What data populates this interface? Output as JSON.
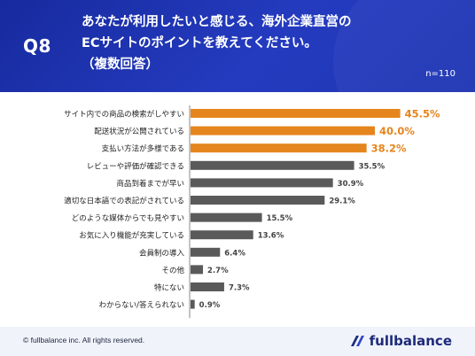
{
  "header": {
    "question_no": "Q8",
    "question_lines": [
      "あなたが利用したいと感じる、海外企業直営の",
      "ECサイトのポイントを教えてください。",
      "（複数回答）"
    ],
    "sample_size": "n=110"
  },
  "chart_data": {
    "type": "bar",
    "orientation": "horizontal",
    "categories": [
      "サイト内での商品の検索がしやすい",
      "配送状況が公開されている",
      "支払い方法が多様である",
      "レビューや評価が確認できる",
      "商品到着までが早い",
      "適切な日本語での表記がされている",
      "どのような媒体からでも見やすい",
      "お気に入り機能が充実している",
      "会員制の導入",
      "その他",
      "特にない",
      "わからない/答えられない"
    ],
    "values": [
      45.5,
      40.0,
      38.2,
      35.5,
      30.9,
      29.1,
      15.5,
      13.6,
      6.4,
      2.7,
      7.3,
      0.9
    ],
    "value_labels": [
      "45.5%",
      "40.0%",
      "38.2%",
      "35.5%",
      "30.9%",
      "29.1%",
      "15.5%",
      "13.6%",
      "6.4%",
      "2.7%",
      "7.3%",
      "0.9%"
    ],
    "highlight_count": 3,
    "colors": {
      "highlight": "#e5851d",
      "normal": "#5a5a5a",
      "axis": "#888888"
    },
    "xlim": [
      0,
      50
    ]
  },
  "footer": {
    "copyright": "© fullbalance inc. All rights reserved.",
    "logo_text": "fullbalance",
    "logo_color": "#1e2a7a"
  }
}
